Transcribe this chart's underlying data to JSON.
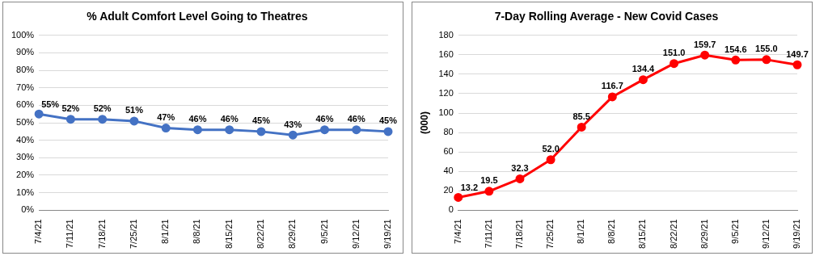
{
  "chart_data": [
    {
      "type": "line",
      "title": "% Adult Comfort Level Going to Theatres",
      "categories": [
        "7/4/21",
        "7/11/21",
        "7/18/21",
        "7/25/21",
        "8/1/21",
        "8/8/21",
        "8/15/21",
        "8/22/21",
        "8/29/21",
        "9/5/21",
        "9/12/21",
        "9/19/21"
      ],
      "series": [
        {
          "color": "#4472c4",
          "values": [
            55,
            52,
            52,
            51,
            47,
            46,
            46,
            45,
            43,
            46,
            46,
            45
          ],
          "value_labels": [
            "55%",
            "52%",
            "52%",
            "51%",
            "47%",
            "46%",
            "46%",
            "45%",
            "43%",
            "46%",
            "46%",
            "45%"
          ]
        }
      ],
      "ylim": [
        0,
        100
      ],
      "yticks": [
        {
          "value": 0,
          "label": "0%"
        },
        {
          "value": 10,
          "label": "10%"
        },
        {
          "value": 20,
          "label": "20%"
        },
        {
          "value": 30,
          "label": "30%"
        },
        {
          "value": 40,
          "label": "40%"
        },
        {
          "value": 50,
          "label": "50%"
        },
        {
          "value": 60,
          "label": "60%"
        },
        {
          "value": 70,
          "label": "70%"
        },
        {
          "value": 80,
          "label": "80%"
        },
        {
          "value": 90,
          "label": "90%"
        },
        {
          "value": 100,
          "label": "100%"
        }
      ],
      "grid": "y",
      "marker": "circle",
      "line_style": "solid"
    },
    {
      "type": "line",
      "title": "7-Day Rolling Average - New Covid Cases",
      "ylabel": "(000)",
      "categories": [
        "7/4/21",
        "7/11/21",
        "7/18/21",
        "7/25/21",
        "8/1/21",
        "8/8/21",
        "8/15/21",
        "8/22/21",
        "8/29/21",
        "9/5/21",
        "9/12/21",
        "9/19/21"
      ],
      "series": [
        {
          "color": "#ff0000",
          "values": [
            13.2,
            19.5,
            32.3,
            52.0,
            85.5,
            116.7,
            134.4,
            151.0,
            159.7,
            154.6,
            155.0,
            149.7
          ],
          "value_labels": [
            "13.2",
            "19.5",
            "32.3",
            "52.0",
            "85.5",
            "116.7",
            "134.4",
            "151.0",
            "159.7",
            "154.6",
            "155.0",
            "149.7"
          ]
        }
      ],
      "ylim": [
        0,
        180
      ],
      "yticks": [
        0,
        20,
        40,
        60,
        80,
        100,
        120,
        140,
        160,
        180
      ],
      "grid": "y",
      "marker": "circle",
      "line_style": "solid"
    }
  ]
}
